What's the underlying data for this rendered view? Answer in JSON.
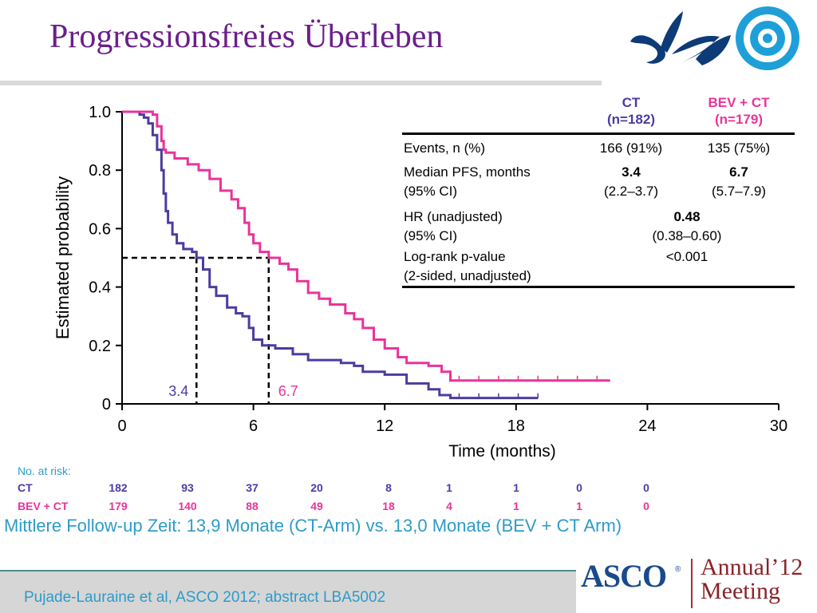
{
  "slide": {
    "title": "Progressionsfreies Überleben",
    "followup": "Mittlere Follow-up Zeit: 13,9 Monate (CT-Arm) vs. 13,0 Monate (BEV + CT Arm)",
    "citation": "Pujade-Lauraine et al, ASCO 2012; abstract LBA5002",
    "logo_asco": "ASCO",
    "logo_asco_reg": "®",
    "logo_annual": "Annual",
    "logo_year": "’12",
    "logo_meeting": "Meeting"
  },
  "colors": {
    "ct": "#4b3ca0",
    "bev": "#e8349a",
    "title": "#6a1f8a",
    "accent": "#2e9bc9"
  },
  "chart_data": {
    "type": "line",
    "subtype": "kaplan-meier",
    "xlabel": "Time (months)",
    "ylabel": "Estimated probability",
    "xlim": [
      0,
      30
    ],
    "ylim": [
      0,
      1.0
    ],
    "xticks": [
      "0",
      "6",
      "12",
      "18",
      "24",
      "30"
    ],
    "yticks": [
      "0",
      "0.2",
      "0.4",
      "0.6",
      "0.8",
      "1.0"
    ],
    "median_labels": {
      "ct": "3.4",
      "bev": "6.7"
    },
    "medians": {
      "ct": 3.4,
      "bev": 6.7
    },
    "series": [
      {
        "name": "CT",
        "key": "ct",
        "color": "#4b3ca0",
        "points": [
          [
            0,
            1.0
          ],
          [
            0.4,
            1.0
          ],
          [
            0.8,
            0.99
          ],
          [
            1.0,
            0.98
          ],
          [
            1.2,
            0.96
          ],
          [
            1.4,
            0.92
          ],
          [
            1.6,
            0.87
          ],
          [
            1.8,
            0.8
          ],
          [
            1.9,
            0.72
          ],
          [
            2.0,
            0.66
          ],
          [
            2.1,
            0.62
          ],
          [
            2.3,
            0.58
          ],
          [
            2.5,
            0.55
          ],
          [
            2.8,
            0.53
          ],
          [
            3.2,
            0.52
          ],
          [
            3.4,
            0.5
          ],
          [
            3.7,
            0.46
          ],
          [
            4.0,
            0.4
          ],
          [
            4.3,
            0.37
          ],
          [
            4.8,
            0.33
          ],
          [
            5.2,
            0.31
          ],
          [
            5.5,
            0.3
          ],
          [
            5.8,
            0.26
          ],
          [
            6.0,
            0.22
          ],
          [
            6.4,
            0.2
          ],
          [
            7.0,
            0.19
          ],
          [
            7.8,
            0.17
          ],
          [
            8.5,
            0.15
          ],
          [
            10.0,
            0.14
          ],
          [
            10.6,
            0.13
          ],
          [
            11.0,
            0.11
          ],
          [
            12.0,
            0.1
          ],
          [
            13.0,
            0.07
          ],
          [
            14.0,
            0.05
          ],
          [
            14.5,
            0.03
          ],
          [
            15.0,
            0.02
          ],
          [
            19.0,
            0.02
          ]
        ]
      },
      {
        "name": "BEV + CT",
        "key": "bev",
        "color": "#e8349a",
        "points": [
          [
            0,
            1.0
          ],
          [
            1.0,
            1.0
          ],
          [
            1.4,
            0.99
          ],
          [
            1.6,
            0.95
          ],
          [
            1.8,
            0.9
          ],
          [
            1.9,
            0.87
          ],
          [
            2.0,
            0.86
          ],
          [
            2.4,
            0.84
          ],
          [
            3.0,
            0.82
          ],
          [
            3.5,
            0.8
          ],
          [
            4.0,
            0.77
          ],
          [
            4.5,
            0.73
          ],
          [
            5.0,
            0.7
          ],
          [
            5.3,
            0.67
          ],
          [
            5.6,
            0.62
          ],
          [
            5.8,
            0.58
          ],
          [
            6.0,
            0.55
          ],
          [
            6.3,
            0.52
          ],
          [
            6.7,
            0.5
          ],
          [
            7.2,
            0.48
          ],
          [
            7.6,
            0.46
          ],
          [
            8.0,
            0.42
          ],
          [
            8.5,
            0.38
          ],
          [
            9.0,
            0.36
          ],
          [
            9.5,
            0.34
          ],
          [
            10.2,
            0.31
          ],
          [
            10.6,
            0.29
          ],
          [
            11.0,
            0.26
          ],
          [
            11.5,
            0.22
          ],
          [
            12.0,
            0.19
          ],
          [
            12.6,
            0.16
          ],
          [
            13.0,
            0.14
          ],
          [
            14.0,
            0.13
          ],
          [
            14.6,
            0.11
          ],
          [
            15.0,
            0.08
          ],
          [
            22.3,
            0.08
          ]
        ]
      }
    ]
  },
  "stats_table": {
    "col_ct": "CT",
    "col_ct_n": "(n=182)",
    "col_bev": "BEV + CT",
    "col_bev_n": "(n=179)",
    "events_label": "Events, n (%)",
    "events_ct": "166 (91%)",
    "events_bev": "135 (75%)",
    "median_label": "Median PFS, months",
    "median_ci_label": "(95% CI)",
    "median_ct": "3.4",
    "median_ct_ci": "(2.2–3.7)",
    "median_bev": "6.7",
    "median_bev_ci": "(5.7–7.9)",
    "hr_label": "HR (unadjusted)",
    "hr_ci_label": "(95% CI)",
    "hr_value": "0.48",
    "hr_ci": "(0.38–0.60)",
    "logrank_label": "Log-rank p-value",
    "logrank_sub": "(2-sided, unadjusted)",
    "logrank_value": "<0.001"
  },
  "risk_table": {
    "title": "No. at risk:",
    "rows": [
      {
        "label": "CT",
        "values": [
          "182",
          "93",
          "37",
          "20",
          "8",
          "1",
          "1",
          "0",
          "0"
        ]
      },
      {
        "label": "BEV + CT",
        "values": [
          "179",
          "140",
          "88",
          "49",
          "18",
          "4",
          "1",
          "1",
          "0"
        ]
      }
    ]
  }
}
